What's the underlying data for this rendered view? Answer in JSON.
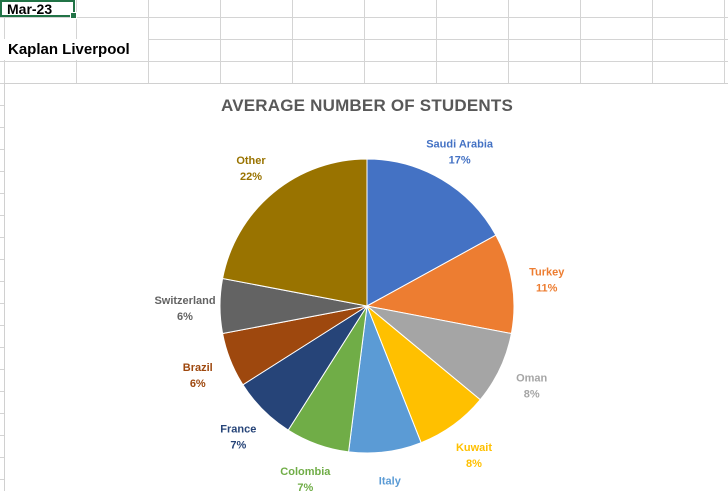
{
  "sheet": {
    "cell_a1": "Mar-23",
    "cell_a3": "Kaplan Liverpool"
  },
  "chart_data": {
    "type": "pie",
    "title": "AVERAGE NUMBER OF STUDENTS",
    "slices": [
      {
        "label": "Saudi Arabia",
        "value": 17,
        "pct": "17%",
        "color": "#4472C4"
      },
      {
        "label": "Turkey",
        "value": 11,
        "pct": "11%",
        "color": "#ED7D31"
      },
      {
        "label": "Oman",
        "value": 8,
        "pct": "8%",
        "color": "#A5A5A5"
      },
      {
        "label": "Kuwait",
        "value": 8,
        "pct": "8%",
        "color": "#FFC000"
      },
      {
        "label": "Italy",
        "value": 8,
        "pct": "8%",
        "color": "#5B9BD5"
      },
      {
        "label": "Colombia",
        "value": 7,
        "pct": "7%",
        "color": "#70AD47"
      },
      {
        "label": "France",
        "value": 7,
        "pct": "7%",
        "color": "#264478"
      },
      {
        "label": "Brazil",
        "value": 6,
        "pct": "6%",
        "color": "#9E480E"
      },
      {
        "label": "Switzerland",
        "value": 6,
        "pct": "6%",
        "color": "#636363"
      },
      {
        "label": "Other",
        "value": 22,
        "pct": "22%",
        "color": "#997300"
      }
    ]
  }
}
